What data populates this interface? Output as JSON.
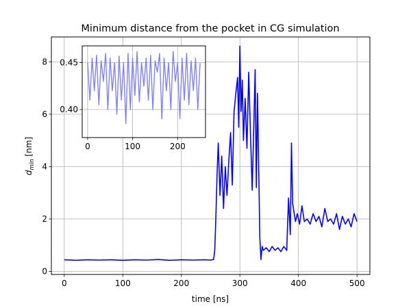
{
  "chart_data": [
    {
      "type": "line",
      "title": "Minimum distance from the pocket in CG simulation",
      "xlabel": "time [ns]",
      "ylabel": "d",
      "ylabel_sub": "min",
      "ylabel_unit": " [nm]",
      "xlim": [
        -22,
        522
      ],
      "ylim": [
        -0.12,
        8.95
      ],
      "xticks": [
        0,
        100,
        200,
        300,
        400,
        500
      ],
      "yticks": [
        0,
        2,
        4,
        6,
        8
      ],
      "grid": true,
      "series": [
        {
          "color": "#0000ff",
          "x": [
            0,
            20,
            40,
            60,
            80,
            100,
            120,
            140,
            160,
            180,
            200,
            220,
            240,
            250,
            255,
            257,
            259,
            261,
            263,
            266,
            269,
            272,
            275,
            278,
            281,
            284,
            287,
            290,
            293,
            296,
            298,
            300,
            302,
            304,
            306,
            309,
            312,
            315,
            318,
            321,
            324,
            326,
            328,
            330,
            332,
            334,
            336,
            338,
            340,
            345,
            350,
            355,
            360,
            365,
            370,
            375,
            380,
            383,
            386,
            388,
            390,
            392,
            395,
            398,
            402,
            406,
            410,
            415,
            420,
            425,
            430,
            435,
            440,
            445,
            450,
            455,
            460,
            465,
            470,
            475,
            480,
            485,
            490,
            495,
            500
          ],
          "y": [
            0.44,
            0.42,
            0.44,
            0.43,
            0.44,
            0.42,
            0.44,
            0.43,
            0.45,
            0.42,
            0.44,
            0.43,
            0.44,
            0.43,
            0.45,
            0.8,
            2.1,
            3.7,
            4.9,
            2.9,
            4.4,
            2.4,
            4.0,
            2.9,
            4.2,
            5.3,
            3.3,
            6.1,
            6.8,
            7.4,
            5.5,
            8.6,
            6.1,
            7.3,
            5.0,
            6.6,
            4.7,
            7.6,
            5.3,
            3.1,
            5.9,
            7.7,
            3.2,
            6.8,
            4.1,
            1.3,
            0.45,
            0.95,
            0.8,
            0.9,
            0.75,
            0.95,
            0.8,
            0.9,
            0.75,
            0.95,
            0.8,
            2.8,
            1.4,
            4.9,
            2.6,
            2.3,
            1.9,
            2.2,
            1.8,
            2.5,
            1.9,
            2.0,
            1.8,
            2.2,
            1.9,
            2.1,
            1.7,
            2.4,
            1.9,
            2.0,
            1.8,
            2.2,
            1.6,
            2.1,
            1.8,
            2.0,
            1.7,
            2.2,
            1.9
          ]
        }
      ]
    },
    {
      "type": "line",
      "xlim": [
        -12,
        262
      ],
      "ylim": [
        0.37,
        0.468
      ],
      "xticks": [
        0,
        100,
        200
      ],
      "yticks": [
        0.4,
        0.45
      ],
      "ytick_labels": [
        "0.40",
        "0.45"
      ],
      "grid": true,
      "series": [
        {
          "color": "#8080ff",
          "x": [
            0,
            5,
            10,
            15,
            20,
            25,
            30,
            35,
            40,
            45,
            50,
            55,
            60,
            65,
            70,
            75,
            80,
            85,
            90,
            95,
            100,
            105,
            110,
            115,
            120,
            125,
            130,
            135,
            140,
            145,
            150,
            155,
            160,
            165,
            170,
            175,
            180,
            185,
            190,
            195,
            200,
            205,
            210,
            215,
            220,
            225,
            230,
            235,
            240,
            245,
            250
          ],
          "y": [
            0.45,
            0.41,
            0.455,
            0.42,
            0.458,
            0.405,
            0.452,
            0.43,
            0.46,
            0.4,
            0.455,
            0.42,
            0.45,
            0.395,
            0.457,
            0.41,
            0.45,
            0.385,
            0.46,
            0.4,
            0.455,
            0.415,
            0.462,
            0.408,
            0.45,
            0.425,
            0.455,
            0.41,
            0.458,
            0.4,
            0.452,
            0.44,
            0.46,
            0.39,
            0.455,
            0.42,
            0.45,
            0.4,
            0.462,
            0.43,
            0.45,
            0.39,
            0.455,
            0.41,
            0.46,
            0.405,
            0.452,
            0.42,
            0.455,
            0.4,
            0.45
          ]
        }
      ]
    }
  ]
}
